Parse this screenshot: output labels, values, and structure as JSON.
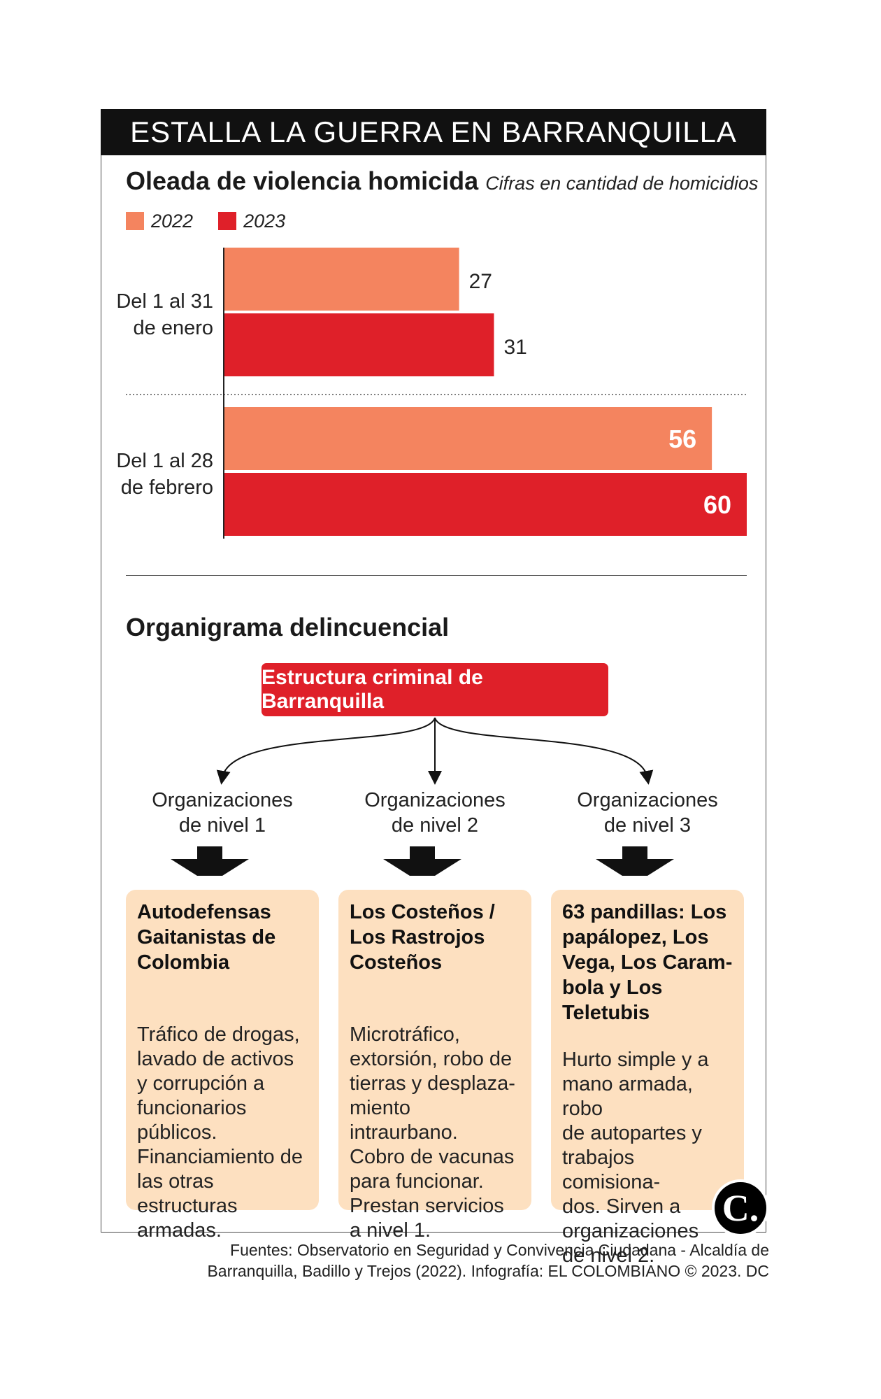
{
  "header": {
    "title": "ESTALLA LA GUERRA EN BARRANQUILLA"
  },
  "chart_data": {
    "type": "bar",
    "orientation": "horizontal",
    "title": "Oleada de violencia homicida",
    "subtitle": "Cifras en cantidad de homicidios",
    "categories": [
      "Del 1 al 31 de enero",
      "Del 1 al 28 de febrero"
    ],
    "category_lines": [
      [
        "Del 1 al 31",
        "de enero"
      ],
      [
        "Del 1 al 28",
        "de febrero"
      ]
    ],
    "series": [
      {
        "name": "2022",
        "values": [
          27,
          56
        ],
        "color": "#f4845f"
      },
      {
        "name": "2023",
        "values": [
          31,
          60
        ],
        "color": "#df2029"
      }
    ],
    "xlim": [
      0,
      60
    ],
    "grid": false,
    "legend_position": "top-left"
  },
  "org": {
    "title": "Organigrama delincuencial",
    "root": "Estructura criminal de Barranquilla",
    "levels": [
      {
        "label_lines": [
          "Organizaciones",
          "de nivel 1"
        ],
        "title_lines": [
          "Autodefensas",
          "Gaitanistas de",
          "Colombia"
        ],
        "desc_lines": [
          "Tráfico de drogas,",
          "lavado de activos",
          "y corrupción a",
          "funcionarios",
          "públicos.",
          "Financiamiento de",
          "las otras estructuras",
          "armadas."
        ]
      },
      {
        "label_lines": [
          "Organizaciones",
          "de nivel 2"
        ],
        "title_lines": [
          "Los Costeños /",
          "Los Rastrojos",
          "Costeños"
        ],
        "desc_lines": [
          "Microtráfico,",
          "extorsión, robo de",
          "tierras y desplaza-",
          "miento intraurbano.",
          "Cobro de vacunas",
          "para funcionar.",
          "Prestan servicios",
          "a nivel 1."
        ]
      },
      {
        "label_lines": [
          "Organizaciones",
          "de nivel 3"
        ],
        "title_lines": [
          "63 pandillas: Los",
          "papálopez, Los",
          "Vega, Los Caram-",
          "bola y Los Teletubis"
        ],
        "desc_lines": [
          "Hurto simple y a",
          "mano armada, robo",
          "de autopartes y",
          "trabajos comisiona-",
          "dos. Sirven a",
          "organizaciones",
          "de nivel 2."
        ]
      }
    ]
  },
  "logo": {
    "text": "C."
  },
  "footer": {
    "lines": [
      "Fuentes: Observatorio en Seguridad y Convivencia Ciudadana - Alcaldía de",
      "Barranquilla, Badillo y Trejos (2022). Infografía: EL COLOMBIANO © 2023. DC"
    ]
  }
}
